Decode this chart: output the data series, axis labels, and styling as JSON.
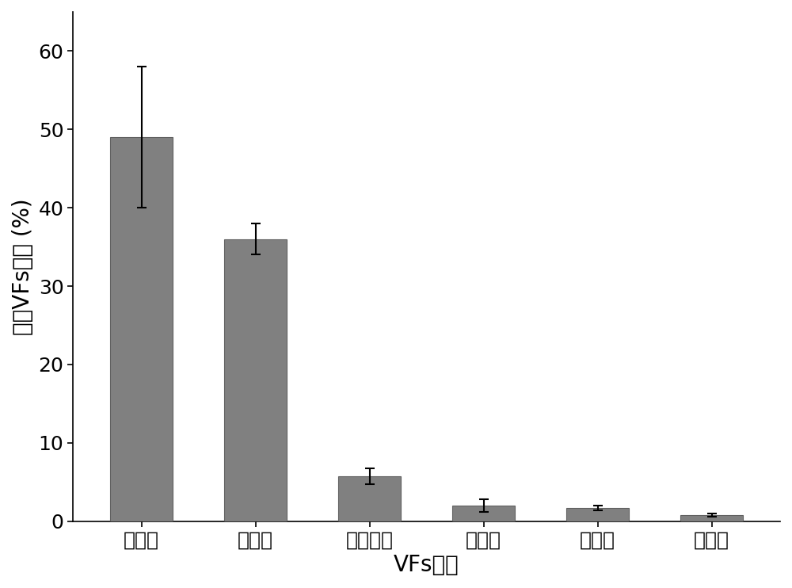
{
  "categories": [
    "进攻型",
    "运动型",
    "毒性蛋白",
    "防御型",
    "免疫型",
    "未知型"
  ],
  "values": [
    49.0,
    36.0,
    5.7,
    2.0,
    1.7,
    0.8
  ],
  "errors": [
    9.0,
    2.0,
    1.0,
    0.8,
    0.3,
    0.2
  ],
  "bar_color": "#808080",
  "bar_edgecolor": "#606060",
  "bar_width": 0.55,
  "ylim": [
    0,
    65
  ],
  "yticks": [
    0,
    10,
    20,
    30,
    40,
    50,
    60
  ],
  "ylabel": "占总VFs比例 (%)",
  "xlabel": "VFs类型",
  "ylabel_fontsize": 20,
  "xlabel_fontsize": 20,
  "tick_fontsize": 18,
  "background_color": "#ffffff",
  "capsize": 4,
  "error_linewidth": 1.5,
  "error_color": "#000000"
}
